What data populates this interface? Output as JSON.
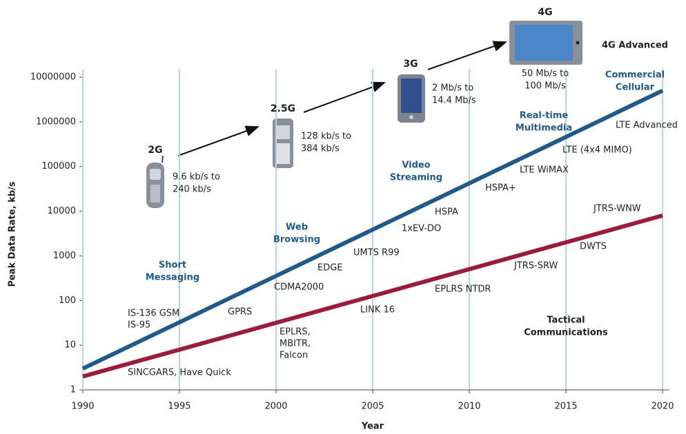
{
  "chart_data": {
    "type": "line",
    "y_label": "Peak Data Rate, kb/s",
    "x_label": "Year",
    "log_scale": true,
    "grid": true,
    "xlim": [
      1990,
      2020
    ],
    "xticks": [
      1990,
      1995,
      2000,
      2005,
      2010,
      2015,
      2020
    ],
    "ylim": [
      1,
      10000000
    ],
    "yticks": [
      1,
      10,
      100,
      1000,
      10000,
      100000,
      1000000,
      10000000
    ],
    "series": [
      {
        "name": [
          "Commercial",
          "Cellular"
        ],
        "color": "#1f5a8a",
        "x": [
          1990,
          2020
        ],
        "values": [
          3,
          5000000
        ]
      },
      {
        "name": [
          "Tactical",
          "Communications"
        ],
        "color": "#9b1c3a",
        "x": [
          1990,
          2020
        ],
        "values": [
          2,
          8000
        ]
      }
    ],
    "phases": [
      [
        "Short",
        "Messaging"
      ],
      [
        "Web",
        "Browsing"
      ],
      [
        "Video",
        "Streaming"
      ],
      [
        "Real-time",
        "Multimedia"
      ]
    ],
    "technologies": [
      [
        "IS-136 GSM",
        "IS-95"
      ],
      [
        "SINCGARS, Have Quick"
      ],
      [
        "GPRS"
      ],
      [
        "CDMA2000"
      ],
      [
        "EDGE"
      ],
      [
        "UMTS R99"
      ],
      [
        "1xEV-DO"
      ],
      [
        "HSPA"
      ],
      [
        "HSPA+"
      ],
      [
        "LTE WiMAX"
      ],
      [
        "LTE (4x4 MIMO)"
      ],
      [
        "LTE Advanced"
      ],
      [
        "JTRS-WNW"
      ],
      [
        "DWTS"
      ],
      [
        "JTRS-SRW"
      ],
      [
        "EPLRS NTDR"
      ],
      [
        "LINK 16"
      ],
      [
        "EPLRS,",
        "MBITR,",
        "Falcon"
      ]
    ],
    "generations": [
      {
        "name": "2G",
        "rate": [
          "9.6 kb/s to",
          "240 kb/s"
        ]
      },
      {
        "name": "2.5G",
        "rate": [
          "128 kb/s to",
          "384 kb/s"
        ]
      },
      {
        "name": "3G",
        "rate": [
          "2 Mb/s to",
          "14.4 Mb/s"
        ]
      },
      {
        "name": "4G",
        "rate": [
          "50 Mb/s to",
          "100 Mb/s"
        ]
      }
    ],
    "note": "4G Advanced"
  }
}
